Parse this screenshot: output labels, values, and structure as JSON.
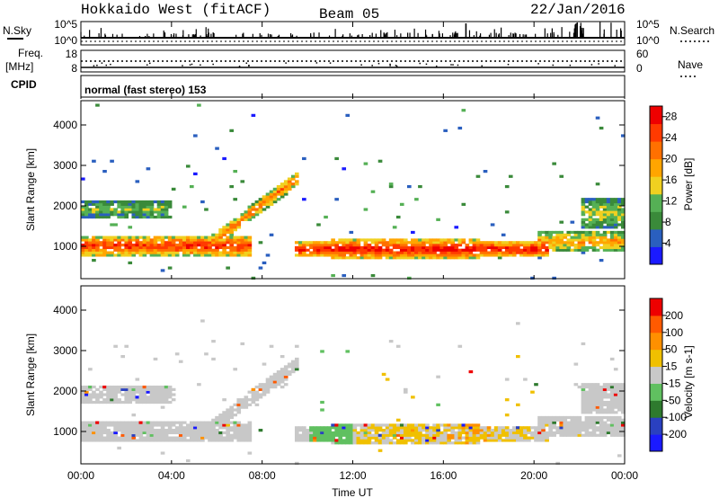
{
  "header": {
    "title": "Hokkaido West (fitACF)",
    "beam": "Beam 05",
    "date": "22/Jan/2016"
  },
  "noise_panel": {
    "left_label": "N.Sky",
    "right_label": "N.Search",
    "left_ticks": [
      "10^5",
      "10^0"
    ],
    "right_ticks": [
      "10^5",
      "10^0"
    ]
  },
  "freq_panel": {
    "left_label_1": "Freq.",
    "left_label_2": "[MHz]",
    "right_label": "Nave",
    "left_ticks": [
      "18",
      "8"
    ],
    "right_ticks": [
      "60",
      "0"
    ]
  },
  "cpid": {
    "label": "CPID",
    "text": "normal (fast stereo) 153"
  },
  "colors": {
    "power_scale": [
      "#1a1aff",
      "#2a5fbf",
      "#3a8a3a",
      "#55b055",
      "#f0d020",
      "#ffa500",
      "#ff7000",
      "#ff3a00",
      "#ee0000"
    ],
    "velocity_scale": [
      "#1a1aff",
      "#2a40c0",
      "#2e7a2e",
      "#60c060",
      "#c8c8c8",
      "#f0c000",
      "#ff9000",
      "#ff5a00",
      "#ee0000"
    ]
  },
  "chart_data": [
    {
      "type": "heatmap",
      "name": "power",
      "xlabel": "",
      "ylabel": "Slant Range [km]",
      "x_tick_labels": [
        "00:00",
        "04:00",
        "08:00",
        "12:00",
        "16:00",
        "20:00",
        "00:00"
      ],
      "y_ticks": [
        "1000",
        "2000",
        "3000",
        "4000"
      ],
      "y_values": [
        1000,
        2000,
        3000,
        4000
      ],
      "ylim": [
        200,
        4600
      ],
      "colorbar": {
        "label": "Power [dB]",
        "ticks": [
          "4",
          "8",
          "12",
          "16",
          "20",
          "24",
          "28"
        ],
        "range": [
          0,
          30
        ]
      }
    },
    {
      "type": "heatmap",
      "name": "velocity",
      "xlabel": "Time UT",
      "ylabel": "Slant Range [km]",
      "x_tick_labels": [
        "00:00",
        "04:00",
        "08:00",
        "12:00",
        "16:00",
        "20:00",
        "00:00"
      ],
      "y_ticks": [
        "1000",
        "2000",
        "3000",
        "4000"
      ],
      "y_values": [
        1000,
        2000,
        3000,
        4000
      ],
      "ylim": [
        200,
        4600
      ],
      "colorbar": {
        "label": "Velocity [m s-1]",
        "ticks": [
          "200",
          "100",
          "50",
          "15",
          "-15",
          "-50",
          "-100",
          "-200"
        ]
      }
    }
  ]
}
